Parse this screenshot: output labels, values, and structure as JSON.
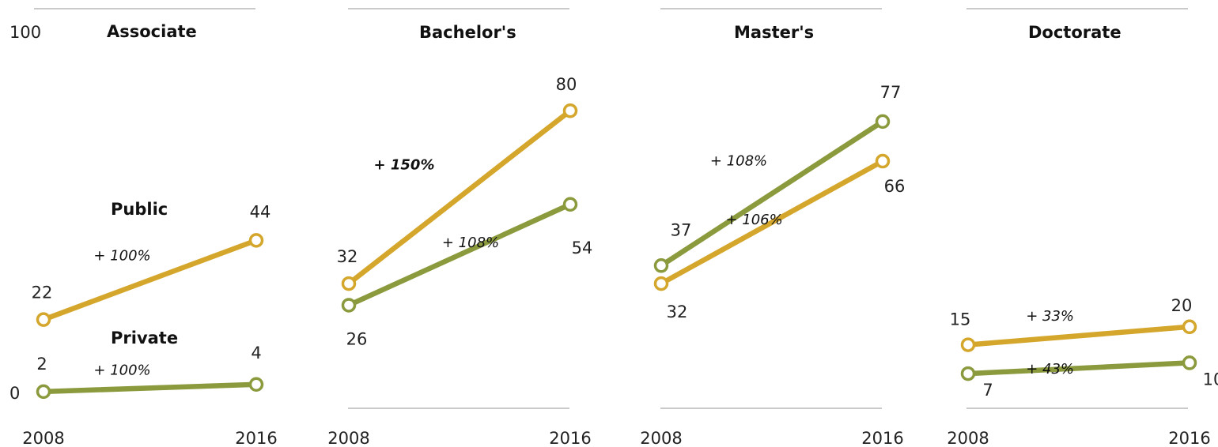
{
  "chart_data": {
    "type": "line",
    "x": [
      "2008",
      "2016"
    ],
    "ylim": [
      0,
      100
    ],
    "ytick_top": "100",
    "ytick_zero": "0",
    "grid": false,
    "colors": {
      "public": "#d4a72c",
      "private": "#8a9a3c"
    },
    "panels": [
      {
        "title": "Associate",
        "public": {
          "tag": "Public",
          "values": [
            22,
            44
          ],
          "labels": [
            "22",
            "44"
          ],
          "change": "+ 100%"
        },
        "private": {
          "tag": "Private",
          "values": [
            2,
            4
          ],
          "labels": [
            "2",
            "4"
          ],
          "change": "+ 100%"
        }
      },
      {
        "title": "Bachelor's",
        "public": {
          "values": [
            32,
            80
          ],
          "labels": [
            "32",
            "80"
          ],
          "change": "+ 150%"
        },
        "private": {
          "values": [
            26,
            54
          ],
          "labels": [
            "26",
            "54"
          ],
          "change": "+ 108%"
        }
      },
      {
        "title": "Master's",
        "public": {
          "values": [
            32,
            66
          ],
          "labels": [
            "32",
            "66"
          ],
          "change": "+ 106%"
        },
        "private": {
          "values": [
            37,
            77
          ],
          "labels": [
            "37",
            "77"
          ],
          "change": "+ 108%"
        }
      },
      {
        "title": "Doctorate",
        "public": {
          "values": [
            15,
            20
          ],
          "labels": [
            "15",
            "20"
          ],
          "change": "+ 33%"
        },
        "private": {
          "values": [
            7,
            10
          ],
          "labels": [
            "7",
            "10"
          ],
          "change": "+ 43%"
        }
      }
    ]
  }
}
